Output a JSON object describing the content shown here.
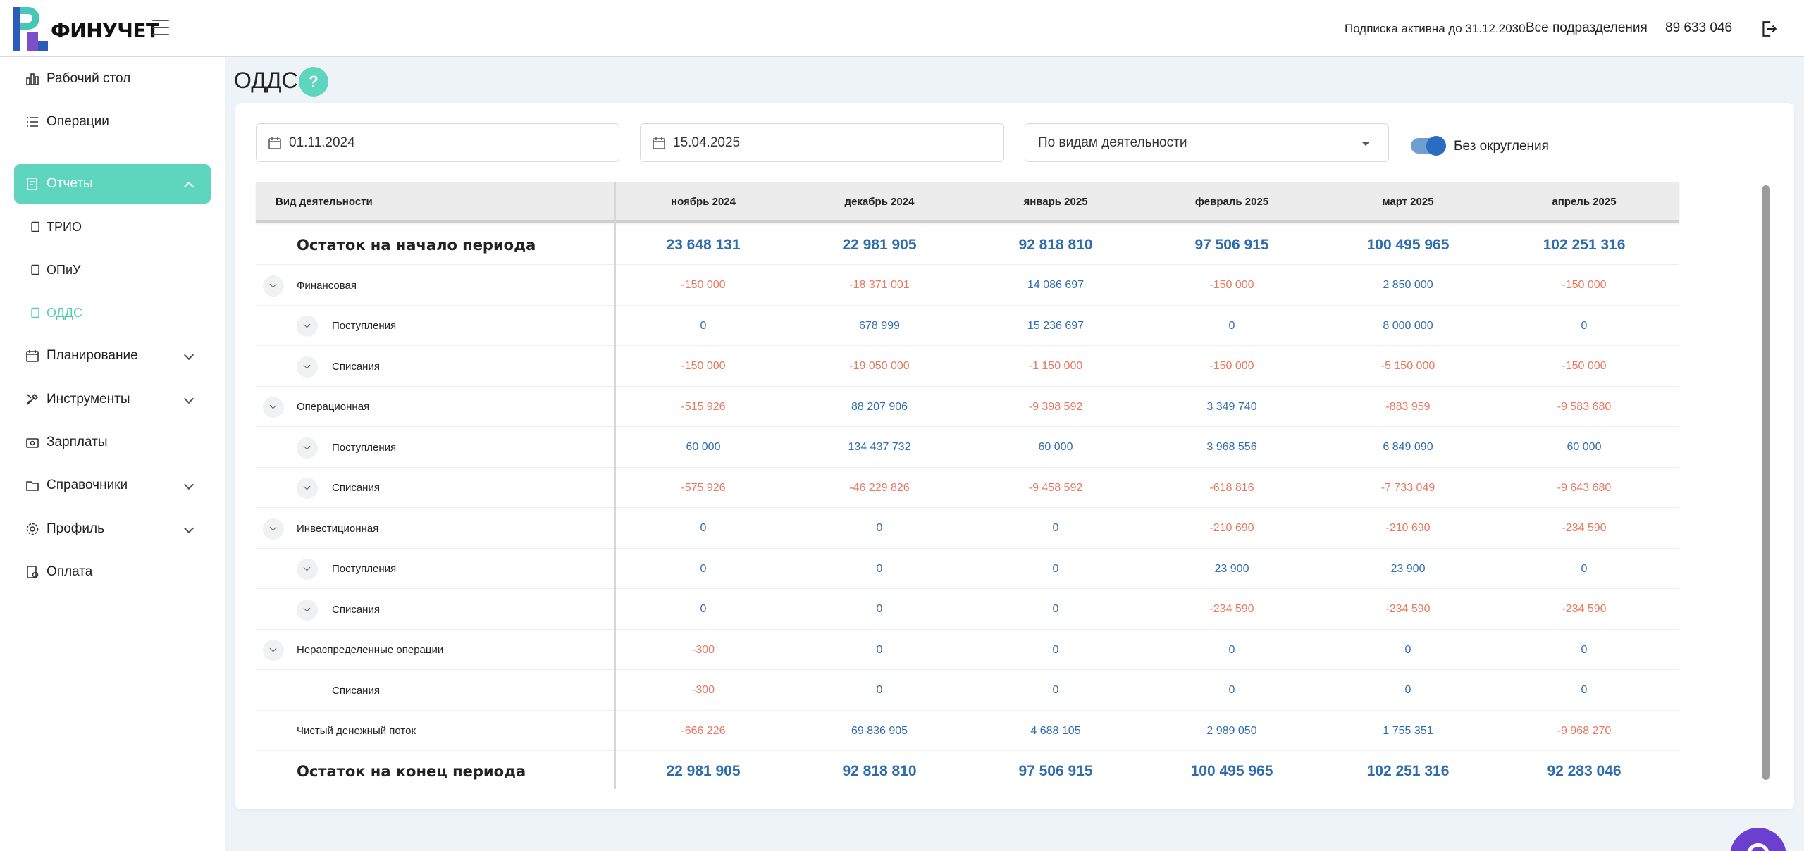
{
  "header": {
    "brand": "ФИНУЧЕТ",
    "subscription": "Подписка активна до 31.12.2030",
    "divisions": "Все подразделения",
    "phone": "89 633 046"
  },
  "sidebar": {
    "items": [
      {
        "label": "Рабочий стол",
        "icon": "chart-icon"
      },
      {
        "label": "Операции",
        "icon": "list-icon"
      },
      {
        "label": "Отчеты",
        "icon": "report-icon"
      },
      {
        "label": "Планирование",
        "icon": "calendar-icon"
      },
      {
        "label": "Инструменты",
        "icon": "tools-icon"
      },
      {
        "label": "Зарплаты",
        "icon": "wallet-icon"
      },
      {
        "label": "Справочники",
        "icon": "folder-icon"
      },
      {
        "label": "Профиль",
        "icon": "gear-icon"
      },
      {
        "label": "Оплата",
        "icon": "payment-icon"
      }
    ],
    "subitems": [
      {
        "label": "ТРИО"
      },
      {
        "label": "ОПиУ"
      },
      {
        "label": "ОДДС"
      }
    ]
  },
  "page": {
    "title": "ОДДС",
    "help": "?"
  },
  "filters": {
    "date_from": "01.11.2024",
    "date_to": "15.04.2025",
    "grouping": "По видам деятельности",
    "no_rounding_label": "Без округления",
    "no_rounding_on": true
  },
  "colors": {
    "accent": "#5ed6bd",
    "positive": "#2e6cb0",
    "negative": "#e8785e"
  },
  "table": {
    "first_header": "Вид деятельности",
    "months": [
      "ноябрь 2024",
      "декабрь 2024",
      "январь 2025",
      "февраль 2025",
      "март 2025",
      "апрель 2025"
    ],
    "rows": [
      {
        "label": "Остаток на начало периода",
        "values": [
          "23 648 131",
          "22 981 905",
          "92 818 810",
          "97 506 915",
          "100 495 965",
          "102 251 316"
        ]
      },
      {
        "label": "Финансовая",
        "values": [
          "-150 000",
          "-18 371 001",
          "14 086 697",
          "-150 000",
          "2 850 000",
          "-150 000"
        ]
      },
      {
        "label": "Поступления",
        "values": [
          "0",
          "678 999",
          "15 236 697",
          "0",
          "8 000 000",
          "0"
        ]
      },
      {
        "label": "Списания",
        "values": [
          "-150 000",
          "-19 050 000",
          "-1 150 000",
          "-150 000",
          "-5 150 000",
          "-150 000"
        ]
      },
      {
        "label": "Операционная",
        "values": [
          "-515 926",
          "88 207 906",
          "-9 398 592",
          "3 349 740",
          "-883 959",
          "-9 583 680"
        ]
      },
      {
        "label": "Поступления",
        "values": [
          "60 000",
          "134 437 732",
          "60 000",
          "3 968 556",
          "6 849 090",
          "60 000"
        ]
      },
      {
        "label": "Списания",
        "values": [
          "-575 926",
          "-46 229 826",
          "-9 458 592",
          "-618 816",
          "-7 733 049",
          "-9 643 680"
        ]
      },
      {
        "label": "Инвестиционная",
        "values": [
          "0",
          "0",
          "0",
          "-210 690",
          "-210 690",
          "-234 590"
        ]
      },
      {
        "label": "Поступления",
        "values": [
          "0",
          "0",
          "0",
          "23 900",
          "23 900",
          "0"
        ]
      },
      {
        "label": "Списания",
        "values": [
          "0",
          "0",
          "0",
          "-234 590",
          "-234 590",
          "-234 590"
        ]
      },
      {
        "label": "Нераспределенные операции",
        "values": [
          "-300",
          "0",
          "0",
          "0",
          "0",
          "0"
        ]
      },
      {
        "label": "Списания",
        "values": [
          "-300",
          "0",
          "0",
          "0",
          "0",
          "0"
        ]
      },
      {
        "label": "Чистый денежный поток",
        "values": [
          "-666 226",
          "69 836 905",
          "4 688 105",
          "2 989 050",
          "1 755 351",
          "-9 968 270"
        ]
      },
      {
        "label": "Остаток на конец периода",
        "values": [
          "22 981 905",
          "92 818 810",
          "97 506 915",
          "100 495 965",
          "102 251 316",
          "92 283 046"
        ]
      }
    ]
  }
}
